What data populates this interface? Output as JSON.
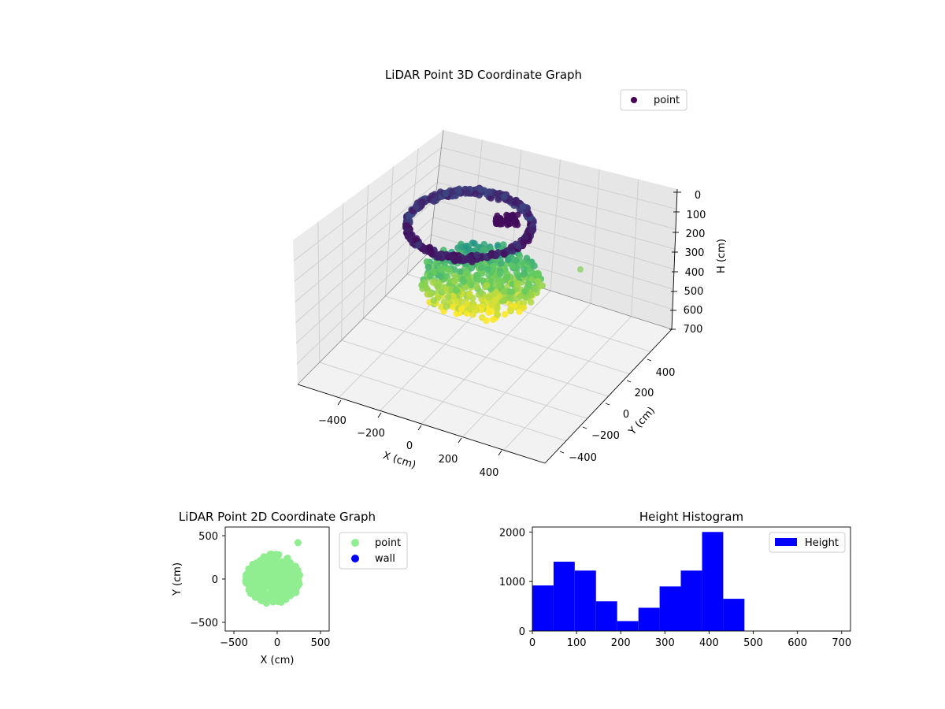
{
  "chart_data": [
    {
      "type": "scatter",
      "projection": "3d",
      "title": "LiDAR Point 3D Coordinate Graph",
      "xlabel": "X (cm)",
      "ylabel": "Y (cm)",
      "zlabel": "H (cm)",
      "xlim": [
        -550,
        550
      ],
      "ylim": [
        -550,
        550
      ],
      "zlim": [
        700,
        0
      ],
      "x_ticks": [
        "−400",
        "−200",
        "0",
        "200",
        "400"
      ],
      "y_ticks": [
        "−400",
        "−200",
        "0",
        "200",
        "400"
      ],
      "z_ticks": [
        "0",
        "100",
        "200",
        "300",
        "400",
        "500",
        "600",
        "700"
      ],
      "colormap": "viridis",
      "legend": [
        {
          "label": "point",
          "color": "#440154"
        }
      ],
      "legend_position": "upper-right",
      "grid": true,
      "outlier_point": {
        "x": 250,
        "y": 420,
        "h": 580
      }
    },
    {
      "type": "scatter",
      "title": "LiDAR Point 2D Coordinate Graph",
      "xlabel": "X (cm)",
      "ylabel": "Y (cm)",
      "xlim": [
        -600,
        600
      ],
      "ylim": [
        -600,
        600
      ],
      "x_ticks": [
        "−500",
        "0",
        "500"
      ],
      "y_ticks": [
        "−500",
        "0",
        "500"
      ],
      "legend": [
        {
          "label": "point",
          "color": "#90ee90"
        },
        {
          "label": "wall",
          "color": "#0000ff"
        }
      ],
      "legend_position": "outside-right",
      "cloud": {
        "center_x": -50,
        "center_y": 0,
        "radius_x": 370,
        "radius_y": 340
      },
      "outlier": {
        "x": 240,
        "y": 420
      }
    },
    {
      "type": "bar",
      "title": "Height Histogram",
      "xlim": [
        0,
        720
      ],
      "ylim": [
        0,
        2100
      ],
      "x_ticks": [
        "0",
        "100",
        "200",
        "300",
        "400",
        "500",
        "600",
        "700"
      ],
      "y_ticks": [
        "0",
        "1000",
        "2000"
      ],
      "bin_width": 48,
      "bin_starts": [
        0,
        48,
        96,
        144,
        192,
        240,
        288,
        336,
        384,
        432
      ],
      "values": [
        920,
        1400,
        1220,
        600,
        200,
        470,
        900,
        1220,
        2000,
        650
      ],
      "color": "#0000ff",
      "legend": [
        {
          "label": "Height",
          "color": "#0000ff"
        }
      ],
      "legend_position": "upper-right"
    }
  ]
}
